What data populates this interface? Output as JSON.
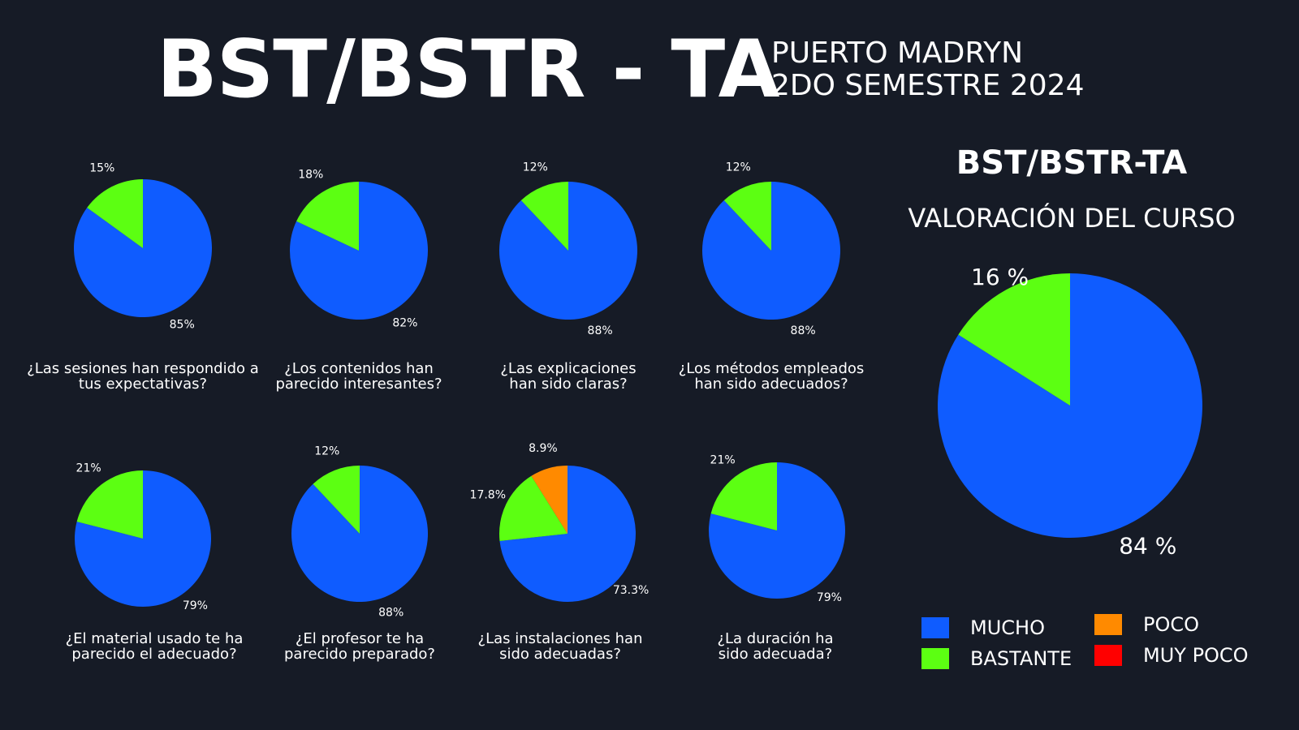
{
  "header": {
    "title": "BST/BSTR - TA",
    "subtitle_line1": "PUERTO MADRYN",
    "subtitle_line2": "2DO SEMESTRE 2024"
  },
  "summary": {
    "title": "BST/BSTR-TA",
    "subtitle": "VALORACIÓN DEL CURSO"
  },
  "colors": {
    "mucho": "#0f5cff",
    "bastante": "#5cff12",
    "poco": "#ff8a00",
    "muy_poco": "#ff0000"
  },
  "legend": [
    {
      "key": "mucho",
      "label": "MUCHO"
    },
    {
      "key": "bastante",
      "label": "BASTANTE"
    },
    {
      "key": "poco",
      "label": "POCO"
    },
    {
      "key": "muy_poco",
      "label": "MUY POCO"
    }
  ],
  "chart_data": [
    {
      "type": "pie",
      "question": [
        "¿Las sesiones han respondido a",
        "tus expectativas?"
      ],
      "slices": [
        {
          "category": "mucho",
          "value": 85,
          "label": "85%"
        },
        {
          "category": "bastante",
          "value": 15,
          "label": "15%"
        }
      ]
    },
    {
      "type": "pie",
      "question": [
        "¿Los contenidos han",
        "parecido interesantes?"
      ],
      "slices": [
        {
          "category": "mucho",
          "value": 82,
          "label": "82%"
        },
        {
          "category": "bastante",
          "value": 18,
          "label": "18%"
        }
      ]
    },
    {
      "type": "pie",
      "question": [
        "¿Las explicaciones",
        "han sido claras?"
      ],
      "slices": [
        {
          "category": "mucho",
          "value": 88,
          "label": "88%"
        },
        {
          "category": "bastante",
          "value": 12,
          "label": "12%"
        }
      ]
    },
    {
      "type": "pie",
      "question": [
        "¿Los métodos empleados",
        "han sido adecuados?"
      ],
      "slices": [
        {
          "category": "mucho",
          "value": 88,
          "label": "88%"
        },
        {
          "category": "bastante",
          "value": 12,
          "label": "12%"
        }
      ]
    },
    {
      "type": "pie",
      "question": [
        "¿El material usado te ha",
        "parecido el adecuado?"
      ],
      "slices": [
        {
          "category": "mucho",
          "value": 79,
          "label": "79%"
        },
        {
          "category": "bastante",
          "value": 21,
          "label": "21%"
        }
      ]
    },
    {
      "type": "pie",
      "question": [
        "¿El profesor te ha",
        "parecido preparado?"
      ],
      "slices": [
        {
          "category": "mucho",
          "value": 88,
          "label": "88%"
        },
        {
          "category": "bastante",
          "value": 12,
          "label": "12%"
        }
      ]
    },
    {
      "type": "pie",
      "question": [
        "¿Las instalaciones han",
        "sido adecuadas?"
      ],
      "slices": [
        {
          "category": "mucho",
          "value": 73.3,
          "label": "73.3%"
        },
        {
          "category": "bastante",
          "value": 17.8,
          "label": "17.8%"
        },
        {
          "category": "poco",
          "value": 8.9,
          "label": "8.9%"
        }
      ]
    },
    {
      "type": "pie",
      "question": [
        "¿La duración ha",
        "sido adecuada?"
      ],
      "slices": [
        {
          "category": "mucho",
          "value": 79,
          "label": "79%"
        },
        {
          "category": "bastante",
          "value": 21,
          "label": "21%"
        }
      ]
    },
    {
      "type": "pie",
      "question": [],
      "slices": [
        {
          "category": "mucho",
          "value": 84,
          "label": "84 %"
        },
        {
          "category": "bastante",
          "value": 16,
          "label": "16 %"
        }
      ]
    }
  ]
}
